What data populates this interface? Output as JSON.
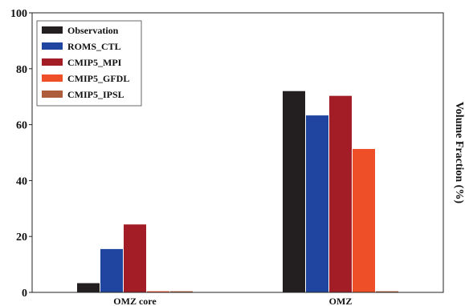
{
  "chart_data": {
    "type": "bar",
    "title": "",
    "xlabel": "",
    "ylabel": "Volume Fraction (%)",
    "ylim": [
      0,
      100
    ],
    "yticks": [
      0,
      20,
      40,
      60,
      80,
      100
    ],
    "categories": [
      "OMZ core",
      "OMZ"
    ],
    "series": [
      {
        "name": "Observation",
        "color": "#231f20",
        "values": [
          3.3,
          72
        ]
      },
      {
        "name": "ROMS_CTL",
        "color": "#1f45a0",
        "values": [
          15.5,
          63.3
        ]
      },
      {
        "name": "CMIP5_MPI",
        "color": "#a21d25",
        "values": [
          24.3,
          70.3
        ]
      },
      {
        "name": "CMIP5_GFDL",
        "color": "#ef4f28",
        "values": [
          0.4,
          51.3
        ]
      },
      {
        "name": "CMIP5_IPSL",
        "color": "#ad5c3c",
        "values": [
          0.4,
          0.4
        ]
      }
    ],
    "legend_position": "top-left",
    "grid": false
  }
}
